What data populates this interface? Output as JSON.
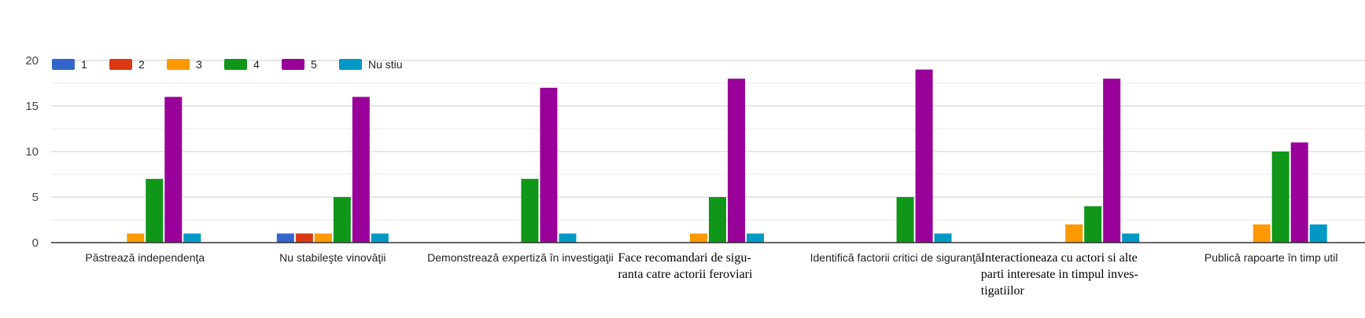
{
  "chart_data": {
    "type": "bar",
    "title": "",
    "xlabel": "",
    "ylabel": "",
    "ylim": [
      0,
      20
    ],
    "yticks": [
      "0",
      "5",
      "10",
      "15",
      "20"
    ],
    "legend_position": "top-left",
    "categories": [
      {
        "lines": [
          "Păstrează independenţa"
        ],
        "style": "sans"
      },
      {
        "lines": [
          "Nu stabileşte vinovăţii"
        ],
        "style": "sans"
      },
      {
        "lines": [
          "Demonstrează expertiză în investigaţii"
        ],
        "style": "sans"
      },
      {
        "lines": [
          "Face recomandari de sigu-",
          "ranta catre actorii feroviari"
        ],
        "style": "serif"
      },
      {
        "lines": [
          "Identifică factorii critici de siguranţă"
        ],
        "style": "sans"
      },
      {
        "lines": [
          "Interactioneaza cu actori si alte",
          "parti interesate in timpul inves-",
          "tigatiilor"
        ],
        "style": "serif"
      },
      {
        "lines": [
          "Publică rapoarte în timp util"
        ],
        "style": "sans"
      }
    ],
    "series": [
      {
        "name": "1",
        "color": "#3366cc",
        "values": [
          0,
          1,
          0,
          0,
          0,
          0,
          0
        ]
      },
      {
        "name": "2",
        "color": "#dc3912",
        "values": [
          0,
          1,
          0,
          0,
          0,
          0,
          0
        ]
      },
      {
        "name": "3",
        "color": "#ff9900",
        "values": [
          1,
          1,
          0,
          1,
          0,
          2,
          2
        ]
      },
      {
        "name": "4",
        "color": "#109618",
        "values": [
          7,
          5,
          7,
          5,
          5,
          4,
          10
        ]
      },
      {
        "name": "5",
        "color": "#990099",
        "values": [
          16,
          16,
          17,
          18,
          19,
          18,
          11
        ]
      },
      {
        "name": "Nu stiu",
        "color": "#0099c6",
        "values": [
          1,
          1,
          1,
          1,
          1,
          1,
          2
        ]
      }
    ]
  }
}
